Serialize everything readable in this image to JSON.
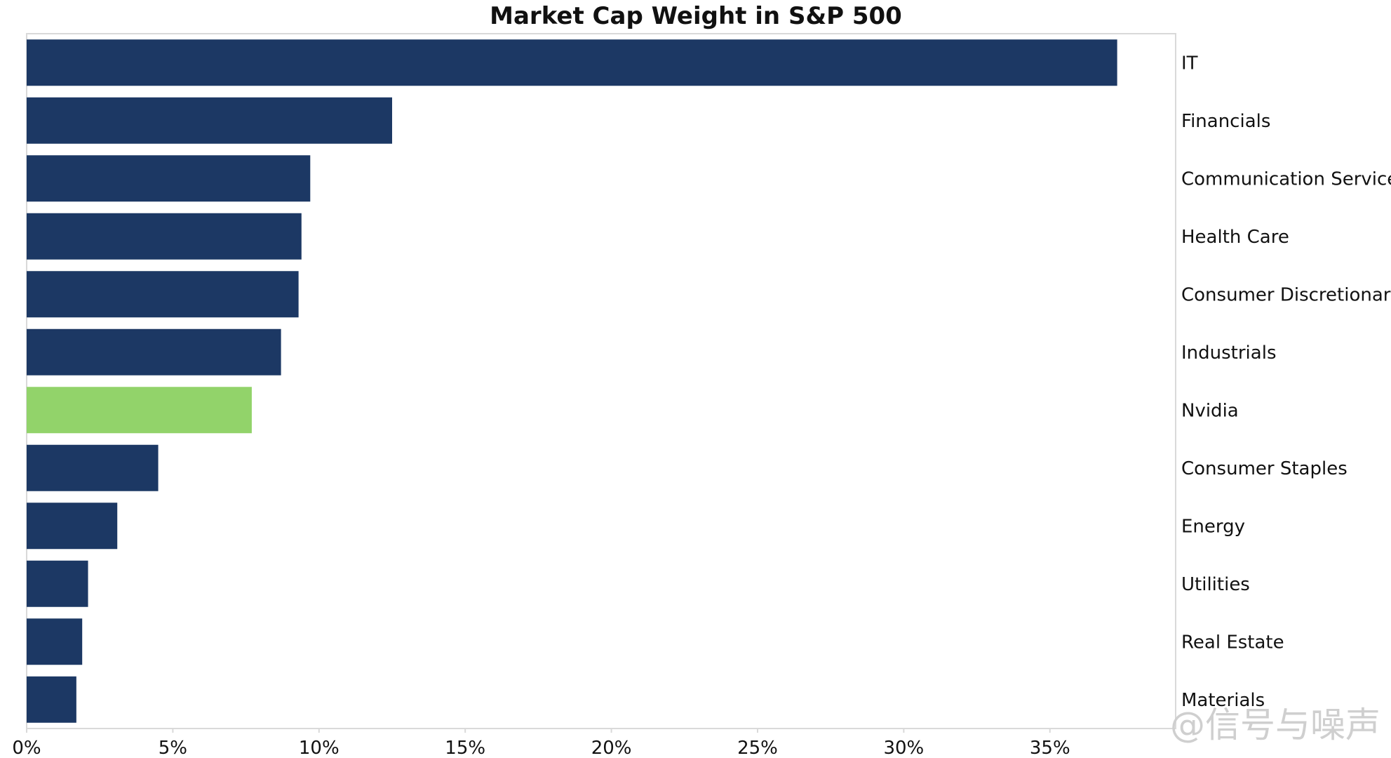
{
  "chart_data": {
    "type": "bar",
    "orientation": "horizontal",
    "title": "Market Cap Weight in S&P 500",
    "xlabel": "",
    "ylabel": "",
    "categories": [
      "IT",
      "Financials",
      "Communication Services",
      "Health Care",
      "Consumer Discretionary",
      "Industrials",
      "Nvidia",
      "Consumer Staples",
      "Energy",
      "Utilities",
      "Real Estate",
      "Materials"
    ],
    "values": [
      37.3,
      12.5,
      9.7,
      9.4,
      9.3,
      8.7,
      7.7,
      4.5,
      3.1,
      2.1,
      1.9,
      1.7
    ],
    "value_unit": "%",
    "xlim": [
      0,
      39.3
    ],
    "x_ticks": [
      0,
      5,
      10,
      15,
      20,
      25,
      30,
      35
    ],
    "x_tick_labels": [
      "0%",
      "5%",
      "10%",
      "15%",
      "20%",
      "25%",
      "30%",
      "35%"
    ],
    "grid": false,
    "legend": "none",
    "category_label_side": "right",
    "colors": {
      "bar": "#1c3864",
      "highlight": "#92d36a",
      "highlight_category": "Nvidia",
      "frame": "#d9d9d9"
    }
  },
  "watermark": "@信号与噪声"
}
